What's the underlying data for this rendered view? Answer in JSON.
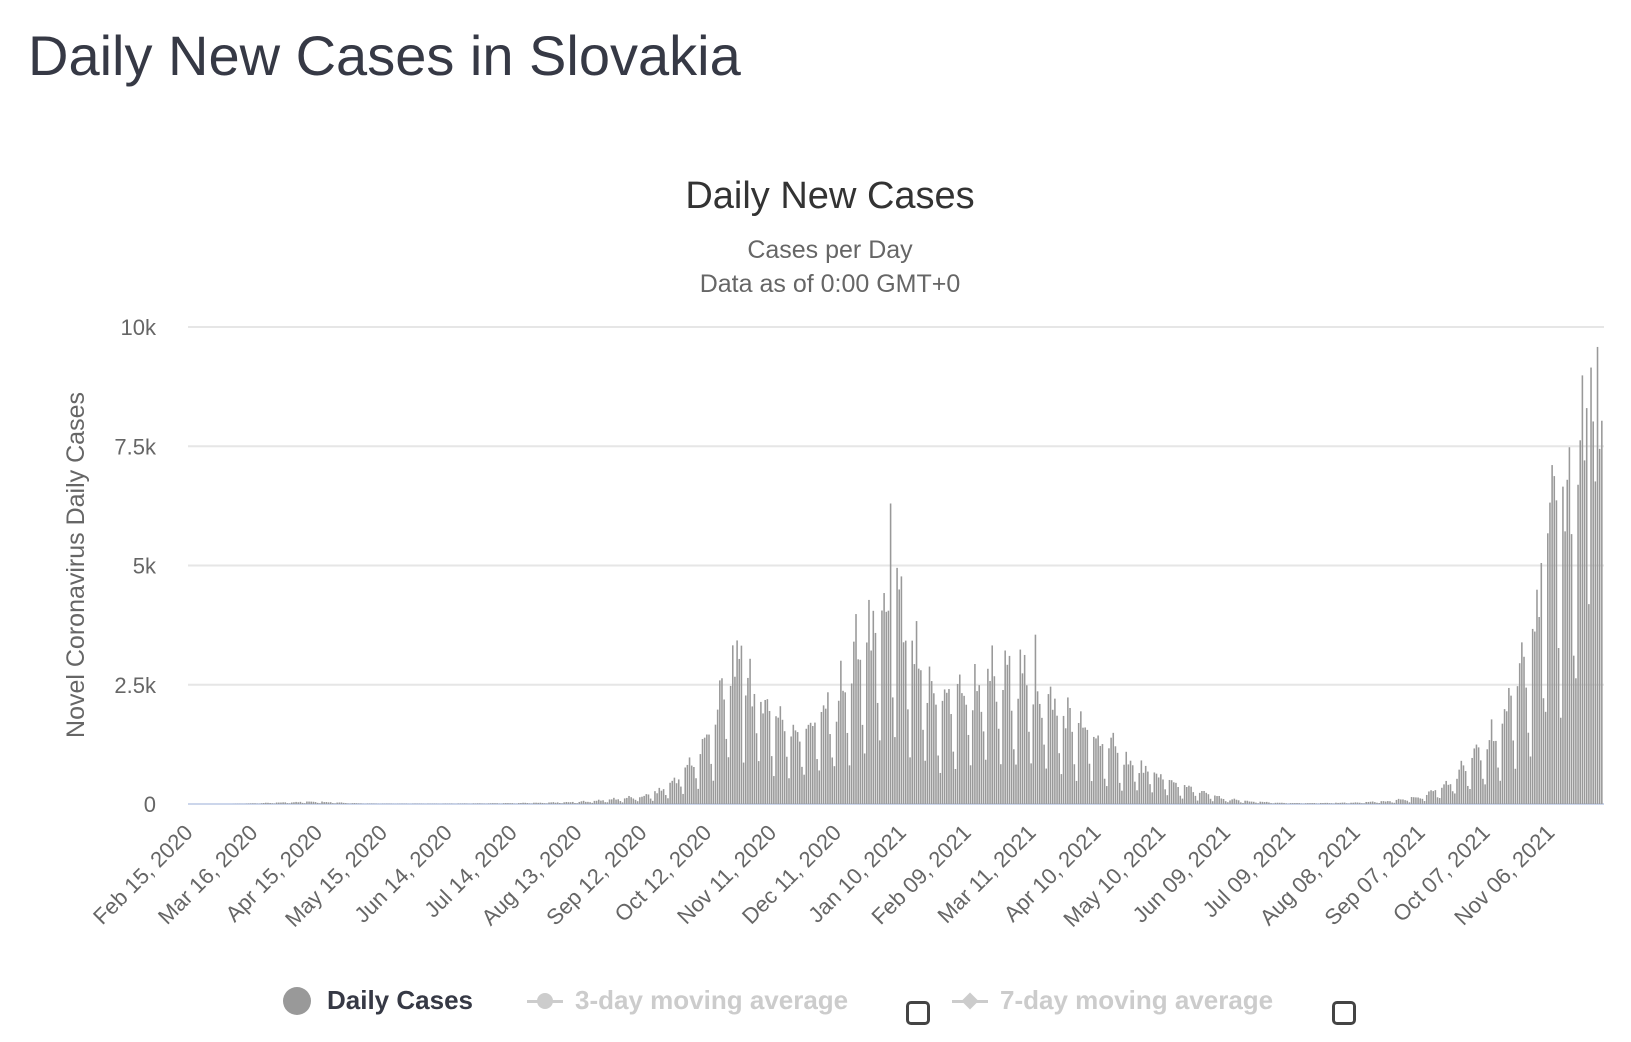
{
  "page_title": "Daily New Cases in Slovakia",
  "colors": {
    "bar": "#999999",
    "grid": "#e6e6e6",
    "baseline": "#ccd6eb",
    "text": "#363945",
    "axis_text": "#666666",
    "legend_hidden": "#cccccc"
  },
  "chart_data": {
    "type": "bar",
    "title": "Daily New Cases",
    "subtitle": "Cases per Day",
    "subtitle2": "Data as of 0:00 GMT+0",
    "ylabel": "Novel Coronavirus Daily Cases",
    "xlabel": "",
    "ylim": [
      0,
      10000
    ],
    "yticks": [
      0,
      2500,
      5000,
      7500,
      10000
    ],
    "ytick_labels": [
      "0",
      "2.5k",
      "5k",
      "7.5k",
      "10k"
    ],
    "x_start": "Feb 15, 2020",
    "x_end": "Nov 30, 2021",
    "xtick_labels": [
      "Feb 15, 2020",
      "Mar 16, 2020",
      "Apr 15, 2020",
      "May 15, 2020",
      "Jun 14, 2020",
      "Jul 14, 2020",
      "Aug 13, 2020",
      "Sep 12, 2020",
      "Oct 12, 2020",
      "Nov 11, 2020",
      "Dec 11, 2020",
      "Jan 10, 2021",
      "Feb 09, 2021",
      "Mar 11, 2021",
      "Apr 10, 2021",
      "May 10, 2021",
      "Jun 09, 2021",
      "Jul 09, 2021",
      "Aug 08, 2021",
      "Sep 07, 2021",
      "Oct 07, 2021",
      "Nov 06, 2021"
    ],
    "grid": true,
    "legend_position": "bottom",
    "series": [
      {
        "name": "Daily Cases",
        "visible": true
      },
      {
        "name": "3-day moving average",
        "visible": false
      },
      {
        "name": "7-day moving average",
        "visible": false
      }
    ],
    "anchors": [
      [
        "Feb 15, 2020",
        0
      ],
      [
        "Mar 06, 2020",
        0
      ],
      [
        "Mar 16, 2020",
        10
      ],
      [
        "Mar 26, 2020",
        25
      ],
      [
        "Apr 05, 2020",
        40
      ],
      [
        "Apr 15, 2020",
        50
      ],
      [
        "Apr 25, 2020",
        30
      ],
      [
        "May 05, 2020",
        10
      ],
      [
        "May 15, 2020",
        5
      ],
      [
        "Jun 14, 2020",
        5
      ],
      [
        "Jul 14, 2020",
        15
      ],
      [
        "Aug 01, 2020",
        30
      ],
      [
        "Aug 13, 2020",
        40
      ],
      [
        "Aug 25, 2020",
        80
      ],
      [
        "Sep 05, 2020",
        120
      ],
      [
        "Sep 12, 2020",
        150
      ],
      [
        "Sep 20, 2020",
        250
      ],
      [
        "Sep 28, 2020",
        500
      ],
      [
        "Oct 05, 2020",
        800
      ],
      [
        "Oct 12, 2020",
        1300
      ],
      [
        "Oct 18, 2020",
        2000
      ],
      [
        "Oct 24, 2020",
        2800
      ],
      [
        "Oct 30, 2020",
        2600
      ],
      [
        "Nov 05, 2020",
        2200
      ],
      [
        "Nov 11, 2020",
        1900
      ],
      [
        "Nov 18, 2020",
        1600
      ],
      [
        "Nov 25, 2020",
        1500
      ],
      [
        "Dec 02, 2020",
        1700
      ],
      [
        "Dec 11, 2020",
        2000
      ],
      [
        "Dec 18, 2020",
        2700
      ],
      [
        "Dec 24, 2020",
        3200
      ],
      [
        "Dec 30, 2020",
        3300
      ],
      [
        "Jan 05, 2021",
        3800
      ],
      [
        "Jan 10, 2021",
        3500
      ],
      [
        "Jan 15, 2021",
        2900
      ],
      [
        "Jan 22, 2021",
        2300
      ],
      [
        "Jan 30, 2021",
        2000
      ],
      [
        "Feb 09, 2021",
        2300
      ],
      [
        "Feb 18, 2021",
        2400
      ],
      [
        "Feb 28, 2021",
        2500
      ],
      [
        "Mar 05, 2021",
        2600
      ],
      [
        "Mar 11, 2021",
        2400
      ],
      [
        "Mar 20, 2021",
        2000
      ],
      [
        "Mar 31, 2021",
        1600
      ],
      [
        "Apr 10, 2021",
        1300
      ],
      [
        "Apr 20, 2021",
        1000
      ],
      [
        "May 01, 2021",
        700
      ],
      [
        "May 10, 2021",
        550
      ],
      [
        "May 20, 2021",
        350
      ],
      [
        "May 31, 2021",
        200
      ],
      [
        "Jun 09, 2021",
        100
      ],
      [
        "Jun 20, 2021",
        50
      ],
      [
        "Jul 09, 2021",
        15
      ],
      [
        "Jul 25, 2021",
        20
      ],
      [
        "Aug 08, 2021",
        30
      ],
      [
        "Aug 25, 2021",
        60
      ],
      [
        "Sep 07, 2021",
        150
      ],
      [
        "Sep 15, 2021",
        300
      ],
      [
        "Sep 25, 2021",
        600
      ],
      [
        "Oct 07, 2021",
        1100
      ],
      [
        "Oct 15, 2021",
        1600
      ],
      [
        "Oct 22, 2021",
        2500
      ],
      [
        "Oct 28, 2021",
        3500
      ],
      [
        "Nov 02, 2021",
        4500
      ],
      [
        "Nov 06, 2021",
        5200
      ],
      [
        "Nov 12, 2021",
        6000
      ],
      [
        "Nov 18, 2021",
        6800
      ],
      [
        "Nov 24, 2021",
        7600
      ],
      [
        "Nov 30, 2021",
        7200
      ]
    ],
    "spikes": [
      [
        "Jan 05, 2021",
        6300
      ],
      [
        "Jan 08, 2021",
        4950
      ],
      [
        "Dec 28, 2020",
        4050
      ],
      [
        "Oct 28, 2020",
        3320
      ],
      [
        "Mar 13, 2021",
        3550
      ],
      [
        "Nov 25, 2021",
        9150
      ],
      [
        "Nov 23, 2021",
        8300
      ]
    ]
  },
  "legend": {
    "daily_label": "Daily Cases",
    "avg3_label": "3-day moving average",
    "avg7_label": "7-day moving average"
  }
}
